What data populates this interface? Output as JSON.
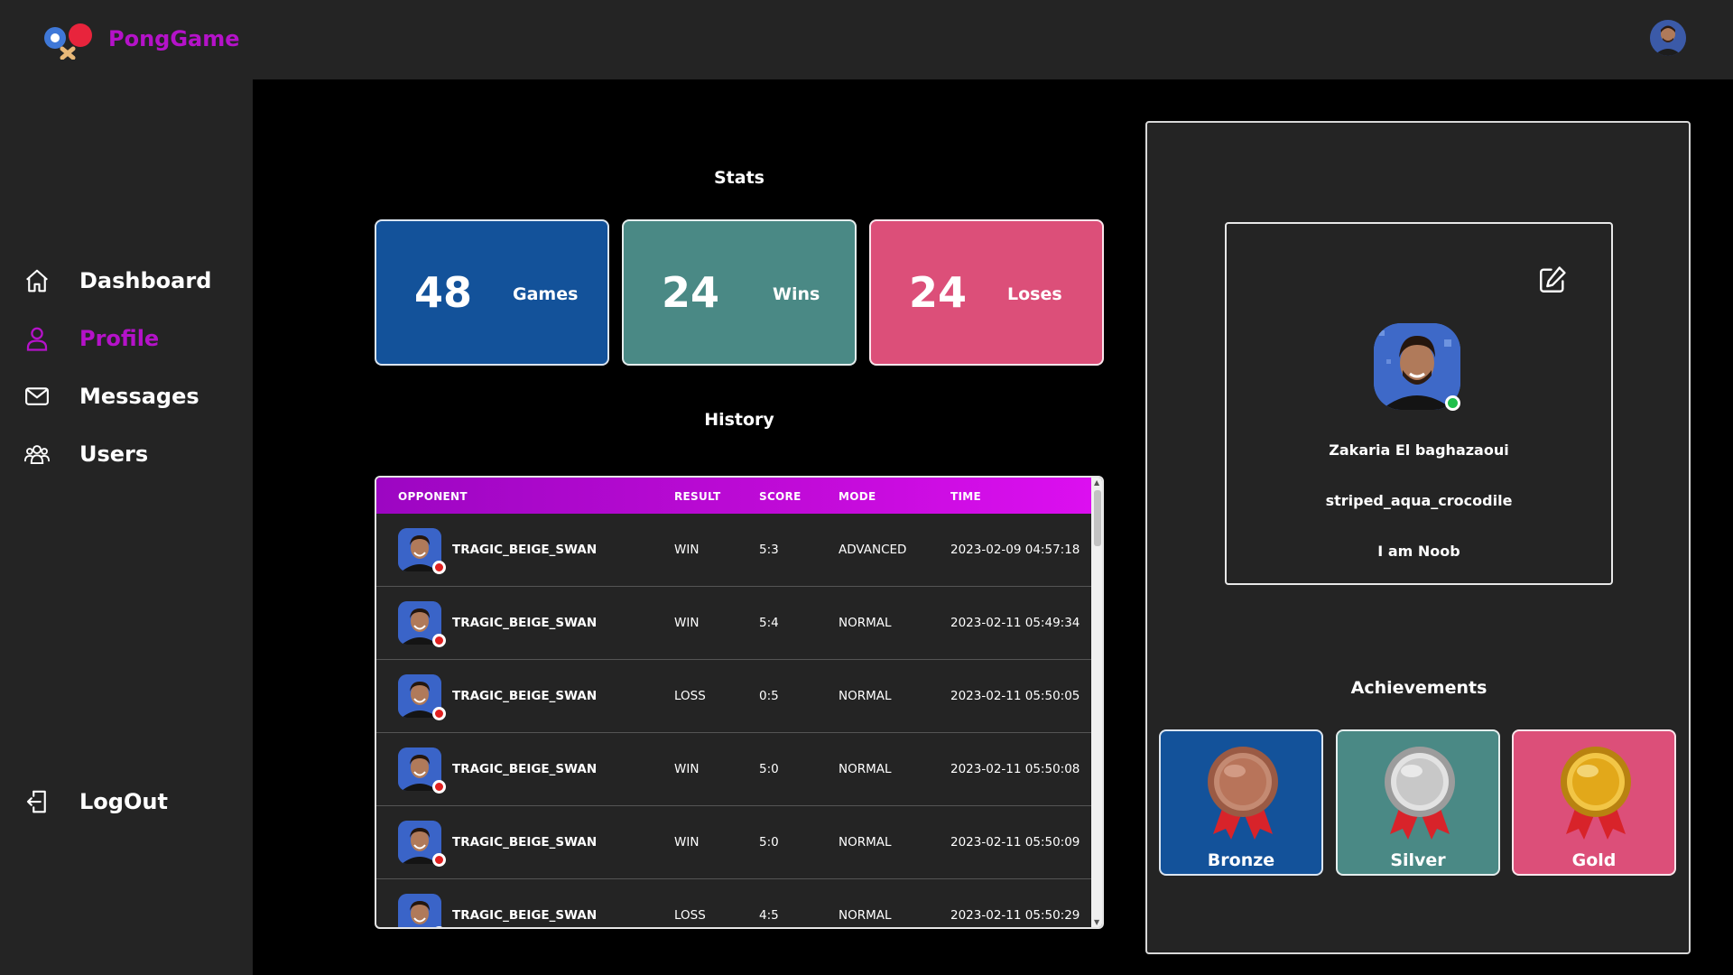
{
  "app": {
    "brand": "PongGame"
  },
  "sidebar": {
    "items": [
      {
        "label": "Dashboard",
        "icon": "home-icon"
      },
      {
        "label": "Profile",
        "icon": "user-icon",
        "active": true
      },
      {
        "label": "Messages",
        "icon": "mail-icon"
      },
      {
        "label": "Users",
        "icon": "users-icon"
      }
    ],
    "logout": {
      "label": "LogOut",
      "icon": "logout-icon"
    }
  },
  "stats": {
    "title": "Stats",
    "cards": [
      {
        "value": "48",
        "label": "Games",
        "color": "#13529a"
      },
      {
        "value": "24",
        "label": "Wins",
        "color": "#4a8985"
      },
      {
        "value": "24",
        "label": "Loses",
        "color": "#dc4f79"
      }
    ]
  },
  "history": {
    "title": "History",
    "columns": [
      "OPPONENT",
      "RESULT",
      "SCORE",
      "MODE",
      "TIME"
    ],
    "rows": [
      {
        "opponent": "TRAGIC_BEIGE_SWAN",
        "result": "WIN",
        "score": "5:3",
        "mode": "ADVANCED",
        "time": "2023-02-09 04:57:18"
      },
      {
        "opponent": "TRAGIC_BEIGE_SWAN",
        "result": "WIN",
        "score": "5:4",
        "mode": "NORMAL",
        "time": "2023-02-11 05:49:34"
      },
      {
        "opponent": "TRAGIC_BEIGE_SWAN",
        "result": "LOSS",
        "score": "0:5",
        "mode": "NORMAL",
        "time": "2023-02-11 05:50:05"
      },
      {
        "opponent": "TRAGIC_BEIGE_SWAN",
        "result": "WIN",
        "score": "5:0",
        "mode": "NORMAL",
        "time": "2023-02-11 05:50:08"
      },
      {
        "opponent": "TRAGIC_BEIGE_SWAN",
        "result": "WIN",
        "score": "5:0",
        "mode": "NORMAL",
        "time": "2023-02-11 05:50:09"
      },
      {
        "opponent": "TRAGIC_BEIGE_SWAN",
        "result": "LOSS",
        "score": "4:5",
        "mode": "NORMAL",
        "time": "2023-02-11 05:50:29"
      }
    ]
  },
  "profile": {
    "full_name": "Zakaria El baghazaoui",
    "username": "striped_aqua_crocodile",
    "bio": "I am Noob",
    "status": "online"
  },
  "achievements": {
    "title": "Achievements",
    "items": [
      {
        "label": "Bronze",
        "color": "#13529a",
        "medal": "#b8745a"
      },
      {
        "label": "Silver",
        "color": "#4a8985",
        "medal": "#c8c8c8"
      },
      {
        "label": "Gold",
        "color": "#dc4f79",
        "medal": "#e2a81a"
      }
    ]
  },
  "colors": {
    "accent": "#b512c9",
    "panel": "#242424",
    "background": "#000000"
  }
}
